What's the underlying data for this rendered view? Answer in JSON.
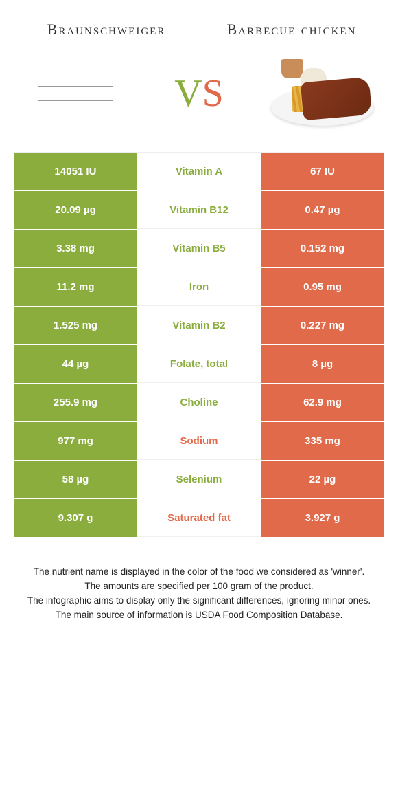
{
  "colors": {
    "green": "#8aad3e",
    "orange": "#e06a49",
    "white": "#ffffff"
  },
  "header": {
    "left_title": "Braunschweiger",
    "right_title": "Barbecue chicken",
    "vs_v": "V",
    "vs_s": "S"
  },
  "table": {
    "rows": [
      {
        "left": "14051 IU",
        "mid": "Vitamin A",
        "right": "67 IU",
        "winner": "left"
      },
      {
        "left": "20.09 µg",
        "mid": "Vitamin B12",
        "right": "0.47 µg",
        "winner": "left"
      },
      {
        "left": "3.38 mg",
        "mid": "Vitamin B5",
        "right": "0.152 mg",
        "winner": "left"
      },
      {
        "left": "11.2 mg",
        "mid": "Iron",
        "right": "0.95 mg",
        "winner": "left"
      },
      {
        "left": "1.525 mg",
        "mid": "Vitamin B2",
        "right": "0.227 mg",
        "winner": "left"
      },
      {
        "left": "44 µg",
        "mid": "Folate, total",
        "right": "8 µg",
        "winner": "left"
      },
      {
        "left": "255.9 mg",
        "mid": "Choline",
        "right": "62.9 mg",
        "winner": "left"
      },
      {
        "left": "977 mg",
        "mid": "Sodium",
        "right": "335 mg",
        "winner": "right"
      },
      {
        "left": "58 µg",
        "mid": "Selenium",
        "right": "22 µg",
        "winner": "left"
      },
      {
        "left": "9.307 g",
        "mid": "Saturated fat",
        "right": "3.927 g",
        "winner": "right"
      }
    ]
  },
  "footer": {
    "line1": "The nutrient name is displayed in the color of the food we considered as 'winner'.",
    "line2": "The amounts are specified per 100 gram of the product.",
    "line3": "The infographic aims to display only the significant differences, ignoring minor ones.",
    "line4": "The main source of information is USDA Food Composition Database."
  }
}
